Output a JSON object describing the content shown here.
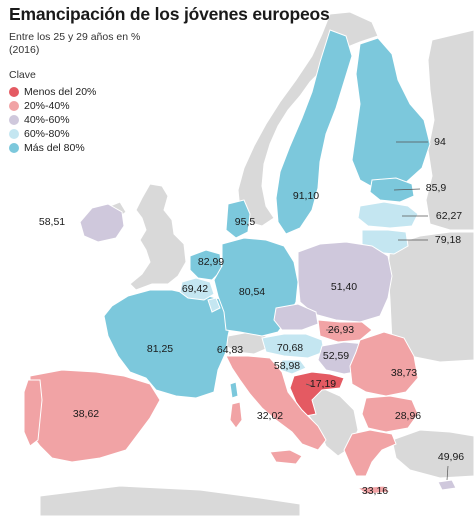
{
  "title": "Emancipación de los jóvenes europeos",
  "subtitle": "Entre los 25 y 29 años en % (2016)",
  "legend": {
    "title": "Clave",
    "items": [
      {
        "label": "Menos del 20%",
        "color": "#e45a62"
      },
      {
        "label": "20%-40%",
        "color": "#f1a3a5"
      },
      {
        "label": "40%-60%",
        "color": "#cfc8dc"
      },
      {
        "label": "60%-80%",
        "color": "#c4e6f1"
      },
      {
        "label": "Más del 80%",
        "color": "#7cc8dc"
      }
    ]
  },
  "colors": {
    "non_eu": "#d9d9d9",
    "border": "#ffffff",
    "sea": "#ffffff"
  },
  "values": {
    "ireland": "58,51",
    "spain": "38,62",
    "france": "81,25",
    "belgium": "69,42",
    "netherlands": "82,99",
    "luxembourg": "64,83",
    "germany": "80,54",
    "denmark": "95,5",
    "sweden": "91,10",
    "finland": "94",
    "estonia": "85,9",
    "latvia": "62,27",
    "lithuania": "79,18",
    "poland": "51,40",
    "slovakia": "26,93",
    "austria": "70,68",
    "slovenia": "58,98",
    "hungary": "52,59",
    "croatia": "17,19",
    "italy": "32,02",
    "romania": "38,73",
    "bulgaria": "28,96",
    "greece": "33,16",
    "cyprus": "49,96"
  }
}
